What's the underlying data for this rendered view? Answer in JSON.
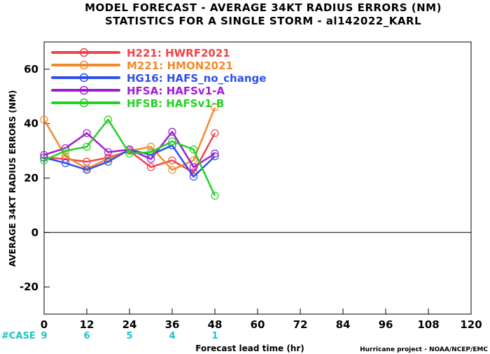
{
  "header": {
    "title_line1": "MODEL FORECAST - AVERAGE 34KT RADIUS ERRORS (NM)",
    "title_line2": "STATISTICS FOR A SINGLE STORM - al142022_KARL"
  },
  "footer": {
    "credit": "Hurricane project - NOAA/NCEP/EMC"
  },
  "chart_data": {
    "type": "line",
    "title": "MODEL FORECAST - AVERAGE 34KT RADIUS ERRORS (NM)",
    "subtitle": "STATISTICS FOR A SINGLE STORM - al142022_KARL",
    "xlabel": "Forecast lead time (hr)",
    "ylabel": "AVERAGE 34KT RADIUS ERRORS (NM)",
    "xlim": [
      0,
      120
    ],
    "ylim": [
      -30,
      70
    ],
    "x_ticks": [
      0,
      12,
      24,
      36,
      48,
      60,
      72,
      84,
      96,
      108,
      120
    ],
    "y_ticks": [
      -20,
      0,
      20,
      40,
      60
    ],
    "zero_line": true,
    "grid": false,
    "legend_position": "top-left",
    "case_label": "#CASE",
    "cases": [
      {
        "x": 0,
        "n": "9"
      },
      {
        "x": 12,
        "n": "6"
      },
      {
        "x": 24,
        "n": "5"
      },
      {
        "x": 36,
        "n": "4"
      },
      {
        "x": 48,
        "n": "1"
      }
    ],
    "series": [
      {
        "name": "H221: HWRF2021",
        "color": "#f2424a",
        "x": [
          0,
          6,
          12,
          18,
          24,
          30,
          36,
          42,
          48
        ],
        "y": [
          27.5,
          27.0,
          26.0,
          27.5,
          30.0,
          24.0,
          26.5,
          22.0,
          36.5
        ]
      },
      {
        "name": "M221: HMON2021",
        "color": "#f4892c",
        "x": [
          0,
          6,
          12,
          18,
          24,
          30,
          36,
          42,
          48
        ],
        "y": [
          41.5,
          28.0,
          23.5,
          27.0,
          30.0,
          31.5,
          23.0,
          26.5,
          46.0
        ]
      },
      {
        "name": "HG16: HAFS_no_change",
        "color": "#2b50ee",
        "x": [
          0,
          6,
          12,
          18,
          24,
          30,
          36,
          42,
          48
        ],
        "y": [
          27.5,
          25.5,
          23.0,
          26.0,
          30.5,
          28.5,
          32.0,
          20.5,
          28.0
        ]
      },
      {
        "name": "HFSA: HAFSv1-A",
        "color": "#a11dd2",
        "x": [
          0,
          6,
          12,
          18,
          24,
          30,
          36,
          42,
          48
        ],
        "y": [
          28.5,
          31.0,
          36.5,
          29.5,
          30.5,
          27.0,
          37.0,
          24.0,
          29.0
        ]
      },
      {
        "name": "HFSB: HAFSv1-B",
        "color": "#22d124",
        "x": [
          0,
          6,
          12,
          18,
          24,
          30,
          36,
          42,
          48
        ],
        "y": [
          26.5,
          30.0,
          31.5,
          41.5,
          29.0,
          29.5,
          33.5,
          30.5,
          13.5
        ]
      }
    ]
  }
}
